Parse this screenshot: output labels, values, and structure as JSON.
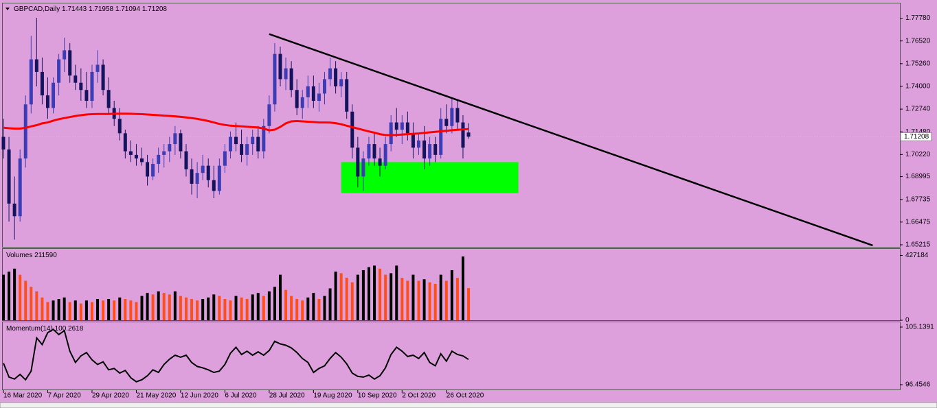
{
  "chart_data": [
    {
      "type": "candlestick",
      "title": "GBPCAD,Daily",
      "categories": [
        "16 Mar 2020",
        null,
        null,
        null,
        null,
        null,
        null,
        null,
        "7 Apr 2020",
        null,
        null,
        null,
        null,
        null,
        null,
        null,
        "29 Apr 2020",
        null,
        null,
        null,
        null,
        null,
        null,
        null,
        "21 May 2020",
        null,
        null,
        null,
        null,
        null,
        null,
        null,
        "12 Jun 2020",
        null,
        null,
        null,
        null,
        null,
        null,
        null,
        "6 Jul 2020",
        null,
        null,
        null,
        null,
        null,
        null,
        null,
        "28 Jul 2020",
        null,
        null,
        null,
        null,
        null,
        null,
        null,
        "19 Aug 2020",
        null,
        null,
        null,
        null,
        null,
        null,
        null,
        "10 Sep 2020",
        null,
        null,
        null,
        null,
        null,
        null,
        null,
        "2 Oct 2020",
        null,
        null,
        null,
        null,
        null,
        null,
        null,
        "26 Oct 2020",
        null,
        null,
        null,
        null
      ],
      "open": [
        1.712,
        1.705,
        1.675,
        1.668,
        1.7,
        1.73,
        1.755,
        1.748,
        1.735,
        1.728,
        1.742,
        1.755,
        1.76,
        1.746,
        1.742,
        1.738,
        1.732,
        1.748,
        1.752,
        1.738,
        1.728,
        1.722,
        1.714,
        1.704,
        1.702,
        1.7,
        1.698,
        1.69,
        1.697,
        1.702,
        1.704,
        1.708,
        1.714,
        1.704,
        1.694,
        1.686,
        1.692,
        1.696,
        1.688,
        1.682,
        1.696,
        1.704,
        1.712,
        1.708,
        1.702,
        1.708,
        1.712,
        1.704,
        1.718,
        1.73,
        1.758,
        1.744,
        1.75,
        1.738,
        1.728,
        1.734,
        1.74,
        1.732,
        1.736,
        1.744,
        1.75,
        1.74,
        1.744,
        1.726,
        1.706,
        1.69,
        1.7,
        1.708,
        1.7,
        1.696,
        1.708,
        1.72,
        1.716,
        1.72,
        1.714,
        1.706,
        1.71,
        1.7,
        1.708,
        1.702,
        1.722,
        1.718,
        1.728,
        1.72,
        1.71443
      ],
      "high": [
        1.722,
        1.712,
        1.69,
        1.705,
        1.735,
        1.768,
        1.778,
        1.756,
        1.745,
        1.745,
        1.758,
        1.767,
        1.764,
        1.752,
        1.75,
        1.748,
        1.752,
        1.76,
        1.755,
        1.745,
        1.732,
        1.728,
        1.716,
        1.71,
        1.708,
        1.706,
        1.702,
        1.7,
        1.706,
        1.708,
        1.712,
        1.718,
        1.716,
        1.708,
        1.7,
        1.698,
        1.702,
        1.7,
        1.696,
        1.7,
        1.708,
        1.715,
        1.72,
        1.716,
        1.712,
        1.716,
        1.718,
        1.722,
        1.735,
        1.764,
        1.762,
        1.756,
        1.754,
        1.744,
        1.738,
        1.746,
        1.746,
        1.742,
        1.748,
        1.756,
        1.754,
        1.748,
        1.748,
        1.73,
        1.712,
        1.704,
        1.712,
        1.714,
        1.706,
        1.712,
        1.724,
        1.728,
        1.724,
        1.726,
        1.72,
        1.714,
        1.718,
        1.712,
        1.712,
        1.728,
        1.73,
        1.734,
        1.732,
        1.724,
        1.71958
      ],
      "low": [
        1.7,
        1.665,
        1.655,
        1.665,
        1.695,
        1.725,
        1.74,
        1.73,
        1.722,
        1.725,
        1.735,
        1.748,
        1.742,
        1.738,
        1.732,
        1.728,
        1.728,
        1.742,
        1.735,
        1.725,
        1.718,
        1.71,
        1.7,
        1.698,
        1.696,
        1.696,
        1.685,
        1.688,
        1.692,
        1.695,
        1.698,
        1.702,
        1.7,
        1.69,
        1.68,
        1.678,
        1.688,
        1.684,
        1.678,
        1.68,
        1.692,
        1.7,
        1.704,
        1.698,
        1.696,
        1.702,
        1.7,
        1.7,
        1.714,
        1.726,
        1.74,
        1.738,
        1.734,
        1.724,
        1.722,
        1.728,
        1.728,
        1.726,
        1.73,
        1.74,
        1.736,
        1.734,
        1.722,
        1.7,
        1.684,
        1.682,
        1.696,
        1.696,
        1.69,
        1.694,
        1.704,
        1.712,
        1.708,
        1.71,
        1.7,
        1.702,
        1.694,
        1.696,
        1.698,
        1.7,
        1.714,
        1.714,
        1.716,
        1.7,
        1.71094
      ],
      "close": [
        1.705,
        1.675,
        1.668,
        1.7,
        1.73,
        1.755,
        1.748,
        1.735,
        1.728,
        1.742,
        1.755,
        1.76,
        1.746,
        1.742,
        1.738,
        1.732,
        1.748,
        1.752,
        1.738,
        1.728,
        1.722,
        1.714,
        1.704,
        1.702,
        1.7,
        1.698,
        1.69,
        1.697,
        1.702,
        1.704,
        1.708,
        1.714,
        1.704,
        1.694,
        1.686,
        1.692,
        1.696,
        1.688,
        1.682,
        1.696,
        1.704,
        1.712,
        1.708,
        1.702,
        1.708,
        1.712,
        1.704,
        1.718,
        1.73,
        1.758,
        1.744,
        1.75,
        1.738,
        1.728,
        1.734,
        1.74,
        1.732,
        1.736,
        1.744,
        1.75,
        1.74,
        1.744,
        1.726,
        1.706,
        1.69,
        1.7,
        1.708,
        1.7,
        1.696,
        1.708,
        1.72,
        1.716,
        1.72,
        1.714,
        1.706,
        1.71,
        1.7,
        1.708,
        1.702,
        1.722,
        1.718,
        1.728,
        1.72,
        1.706,
        1.71208
      ],
      "up_color": "#3c3cb4",
      "down_color": "#14145e",
      "ma": {
        "color": "#ff0000",
        "values": [
          1.7171,
          1.7168,
          1.7166,
          1.7166,
          1.717,
          1.7178,
          1.7185,
          1.7195,
          1.72,
          1.721,
          1.7218,
          1.7224,
          1.723,
          1.7236,
          1.724,
          1.7244,
          1.7246,
          1.7247,
          1.7247,
          1.7247,
          1.7248,
          1.7249,
          1.7249,
          1.7248,
          1.7247,
          1.7246,
          1.7244,
          1.7242,
          1.724,
          1.7238,
          1.7236,
          1.7234,
          1.7231,
          1.7228,
          1.7224,
          1.722,
          1.7214,
          1.7208,
          1.72,
          1.7192,
          1.7186,
          1.7182,
          1.718,
          1.7178,
          1.7176,
          1.7174,
          1.7172,
          1.7166,
          1.7156,
          1.716,
          1.7175,
          1.7195,
          1.7206,
          1.7208,
          1.7206,
          1.7204,
          1.7202,
          1.72,
          1.72,
          1.7199,
          1.7196,
          1.719,
          1.7182,
          1.7174,
          1.7166,
          1.7158,
          1.715,
          1.7143,
          1.7135,
          1.713,
          1.713,
          1.7131,
          1.7133,
          1.7135,
          1.7137,
          1.7139,
          1.7142,
          1.7145,
          1.7148,
          1.7151,
          1.7154,
          1.7157,
          1.7159,
          1.7161,
          1.7163
        ]
      },
      "trendline": {
        "color": "#000000",
        "x": [
          48,
          157
        ],
        "y": [
          1.769,
          1.6518
        ]
      },
      "zone": {
        "color": "#00ff00",
        "x": [
          61,
          93
        ],
        "y": [
          1.698,
          1.6808
        ]
      },
      "ylim": [
        1.651,
        1.786
      ],
      "yticks": [
        {
          "value": 1.7778,
          "label": "1.77780"
        },
        {
          "value": 1.7652,
          "label": "1.76520"
        },
        {
          "value": 1.7526,
          "label": "1.75260"
        },
        {
          "value": 1.74,
          "label": "1.74000"
        },
        {
          "value": 1.7274,
          "label": "1.72740"
        },
        {
          "value": 1.7148,
          "label": "1.71480"
        },
        {
          "value": 1.7022,
          "label": "1.70220"
        },
        1.68995,
        1.67735,
        1.66475,
        1.65215
      ]
    },
    {
      "type": "bar",
      "title": "Volumes",
      "values": [
        300000,
        320000,
        340000,
        300000,
        260000,
        220000,
        190000,
        150000,
        120000,
        130000,
        140000,
        150000,
        120000,
        130000,
        110000,
        130000,
        120000,
        140000,
        130000,
        140000,
        130000,
        150000,
        140000,
        130000,
        120000,
        160000,
        180000,
        170000,
        190000,
        180000,
        170000,
        190000,
        160000,
        150000,
        140000,
        130000,
        140000,
        150000,
        170000,
        160000,
        140000,
        130000,
        160000,
        150000,
        140000,
        170000,
        180000,
        160000,
        190000,
        220000,
        300000,
        200000,
        160000,
        140000,
        130000,
        150000,
        180000,
        140000,
        160000,
        210000,
        320000,
        310000,
        280000,
        250000,
        300000,
        330000,
        350000,
        360000,
        340000,
        300000,
        310000,
        360000,
        280000,
        260000,
        300000,
        260000,
        270000,
        250000,
        240000,
        300000,
        260000,
        330000,
        280000,
        420000,
        211590
      ],
      "up_color": "#000000",
      "down_color": "#ff4f19",
      "ylim": [
        0,
        470000
      ],
      "yticks": [
        0,
        427184
      ]
    },
    {
      "type": "line",
      "title": "Momentum(14)",
      "color": "#000000",
      "values": [
        99.7,
        97.6,
        97.3,
        98.0,
        97.2,
        98.5,
        103.5,
        102.5,
        104.3,
        104.8,
        104.0,
        104.6,
        101.5,
        99.8,
        100.8,
        101.3,
        100.2,
        99.5,
        99.9,
        98.7,
        98.9,
        98.2,
        98.6,
        97.5,
        96.9,
        97.2,
        97.8,
        98.7,
        98.3,
        99.5,
        100.3,
        100.9,
        100.6,
        100.9,
        99.8,
        99.2,
        99.0,
        98.7,
        98.3,
        98.5,
        99.5,
        101.2,
        102.1,
        101.0,
        101.5,
        100.9,
        101.4,
        100.9,
        101.6,
        103.0,
        102.6,
        102.4,
        102.0,
        101.3,
        100.4,
        99.8,
        98.3,
        98.9,
        99.3,
        100.4,
        101.3,
        100.6,
        99.6,
        98.2,
        97.7,
        97.6,
        97.9,
        97.3,
        97.8,
        99.0,
        101.0,
        102.1,
        101.5,
        100.7,
        100.9,
        100.4,
        101.3,
        99.8,
        99.3,
        101.1,
        100.0,
        101.5,
        101.0,
        100.8,
        100.2618
      ],
      "ylim": [
        95.73,
        105.86
      ],
      "yticks": [
        96.4546,
        105.1391
      ]
    }
  ]
}
